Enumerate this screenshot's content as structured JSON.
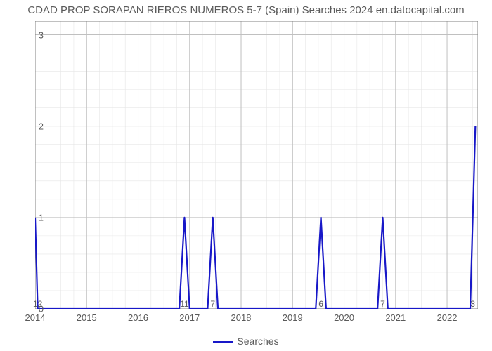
{
  "chart": {
    "type": "line",
    "title": "CDAD PROP SORAPAN RIEROS NUMEROS 5-7 (Spain) Searches 2024 en.datocapital.com",
    "title_fontsize": 15,
    "title_color": "#5a5a5a",
    "background_color": "#ffffff",
    "plot_border_color": "#808080",
    "grid_major_color": "#c0c0c0",
    "grid_minor_color": "#e6e6e6",
    "line_color": "#1818c8",
    "line_width": 2.2,
    "x": {
      "lim": [
        2014,
        2022.6
      ],
      "ticks": [
        2014,
        2015,
        2016,
        2017,
        2018,
        2019,
        2020,
        2021,
        2022
      ],
      "minor_step": 0.25,
      "label_fontsize": 13,
      "label_color": "#5a5a5a"
    },
    "y": {
      "lim": [
        0,
        3.15
      ],
      "ticks": [
        0,
        1,
        2,
        3
      ],
      "minor_step": 0.2,
      "label_fontsize": 13,
      "label_color": "#5a5a5a"
    },
    "series": {
      "name": "Searches",
      "points": [
        [
          2014.0,
          1.0
        ],
        [
          2014.05,
          0.0
        ],
        [
          2016.8,
          0.0
        ],
        [
          2016.9,
          1.0
        ],
        [
          2017.0,
          0.0
        ],
        [
          2017.35,
          0.0
        ],
        [
          2017.45,
          1.0
        ],
        [
          2017.55,
          0.0
        ],
        [
          2019.45,
          0.0
        ],
        [
          2019.55,
          1.0
        ],
        [
          2019.65,
          0.0
        ],
        [
          2020.65,
          0.0
        ],
        [
          2020.75,
          1.0
        ],
        [
          2020.85,
          0.0
        ],
        [
          2022.45,
          0.0
        ],
        [
          2022.55,
          2.0
        ]
      ]
    },
    "value_labels": [
      {
        "x": 2014.05,
        "text": "12"
      },
      {
        "x": 2016.9,
        "text": "11"
      },
      {
        "x": 2017.45,
        "text": "7"
      },
      {
        "x": 2019.55,
        "text": "6"
      },
      {
        "x": 2020.75,
        "text": "7"
      },
      {
        "x": 2022.5,
        "text": "3"
      }
    ],
    "legend": {
      "label": "Searches",
      "fontsize": 14,
      "color": "#5a5a5a"
    }
  }
}
